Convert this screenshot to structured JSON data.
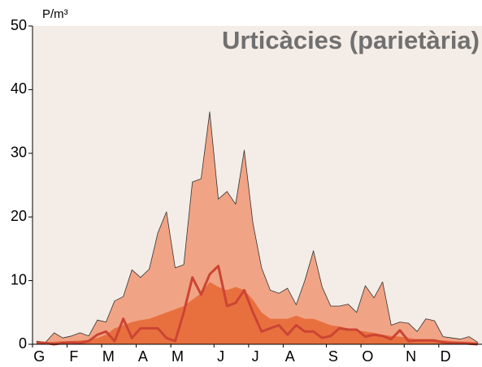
{
  "chart_data": {
    "type": "area",
    "title": "Urticàcies (parietària)",
    "y_label": "P/m³",
    "categories": [
      "G",
      null,
      null,
      null,
      "F",
      null,
      null,
      null,
      "M",
      null,
      null,
      null,
      "A",
      null,
      null,
      null,
      "M",
      null,
      null,
      null,
      null,
      "J",
      null,
      null,
      null,
      "J",
      null,
      null,
      null,
      "A",
      null,
      null,
      null,
      null,
      "S",
      null,
      null,
      null,
      "O",
      null,
      null,
      null,
      null,
      "N",
      null,
      null,
      null,
      "D",
      null,
      null,
      null,
      null
    ],
    "series": [
      {
        "color": "#f0a485",
        "style": "area",
        "values": [
          0.5,
          0.3,
          1.8,
          1,
          1.3,
          1.8,
          1.3,
          3.8,
          3.5,
          6.8,
          7.5,
          11.7,
          10.5,
          11.8,
          17.5,
          20.8,
          12,
          12.5,
          25.5,
          26,
          36.5,
          22.8,
          24,
          22,
          30.5,
          19,
          12,
          8.5,
          8,
          8.8,
          6.2,
          10,
          14.7,
          9,
          6,
          6,
          6.3,
          5,
          9.2,
          7.3,
          9.8,
          3,
          3.5,
          3.3,
          2,
          4,
          3.7,
          1.2,
          1,
          0.8,
          1.2,
          0.3
        ]
      },
      {
        "color": "#e8703f",
        "style": "area",
        "values": [
          0.3,
          0.3,
          0.4,
          0.5,
          0.5,
          0.6,
          0.7,
          1,
          1.5,
          2.5,
          3,
          3.5,
          3.8,
          4,
          4.5,
          5,
          5.5,
          6,
          7,
          8,
          9.8,
          9,
          8.5,
          9,
          8.5,
          7,
          5,
          4,
          4,
          4,
          4.5,
          4,
          4,
          3.5,
          3,
          2.8,
          2.5,
          2.2,
          2,
          1.8,
          1.5,
          1.3,
          1.2,
          1,
          0.8,
          0.8,
          0.7,
          0.6,
          0.5,
          0.4,
          0.4,
          0.3
        ]
      },
      {
        "color": "#cc4433",
        "style": "line",
        "values": [
          0.3,
          0.2,
          0,
          0.2,
          0.3,
          0.2,
          0.5,
          1.5,
          2,
          0.5,
          4,
          1,
          2.5,
          2.5,
          2.5,
          1,
          0.5,
          5,
          10.5,
          7.8,
          11,
          12.3,
          6,
          6.5,
          8.5,
          5,
          2,
          2.5,
          3,
          1.5,
          3,
          2,
          2,
          1,
          1.3,
          2.5,
          2.3,
          2.3,
          1.2,
          1.5,
          1.3,
          0.8,
          2.2,
          0.5,
          0.6,
          0.6,
          0.6,
          0.3,
          0.2,
          0.2,
          0.1,
          0
        ]
      }
    ],
    "ylim": [
      0,
      50
    ],
    "yticks": [
      0,
      10,
      20,
      30,
      40,
      50
    ],
    "background": "#f4ece6"
  }
}
